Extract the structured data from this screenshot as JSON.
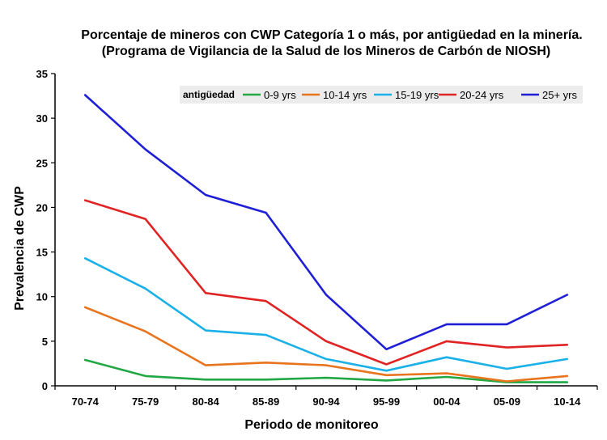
{
  "chart_data": {
    "type": "line",
    "title": "Porcentaje de mineros con CWP Categoría 1 o más, por antigüedad en la minería.",
    "subtitle": "(Programa de Vigilancia de la Salud de los Mineros de Carbón de NIOSH)",
    "xlabel": "Periodo de monitoreo",
    "ylabel": "Prevalencia de CWP",
    "ylim": [
      0,
      35
    ],
    "yticks": [
      0,
      5,
      10,
      15,
      20,
      25,
      30,
      35
    ],
    "categories": [
      "70-74",
      "75-79",
      "80-84",
      "85-89",
      "90-94",
      "95-99",
      "00-04",
      "05-09",
      "10-14"
    ],
    "legend_title": "antigüedad",
    "legend_position": "top-right",
    "grid": false,
    "series": [
      {
        "name": "0-9 yrs",
        "color": "#22a745",
        "values": [
          2.9,
          1.1,
          0.7,
          0.7,
          0.9,
          0.6,
          1.0,
          0.4,
          0.4
        ]
      },
      {
        "name": "10-14 yrs",
        "color": "#e8741e",
        "values": [
          8.8,
          6.1,
          2.3,
          2.6,
          2.3,
          1.2,
          1.4,
          0.5,
          1.1
        ]
      },
      {
        "name": "15-19 yrs",
        "color": "#1ab0e8",
        "values": [
          14.3,
          10.9,
          6.2,
          5.7,
          3.0,
          1.7,
          3.2,
          1.9,
          3.0
        ]
      },
      {
        "name": "20-24 yrs",
        "color": "#e02424",
        "values": [
          20.8,
          18.7,
          10.4,
          9.5,
          5.0,
          2.4,
          5.0,
          4.3,
          4.6
        ]
      },
      {
        "name": "25+ yrs",
        "color": "#1f1fd6",
        "values": [
          32.6,
          26.5,
          21.4,
          19.4,
          10.2,
          4.1,
          6.9,
          6.9,
          10.2
        ]
      }
    ]
  }
}
